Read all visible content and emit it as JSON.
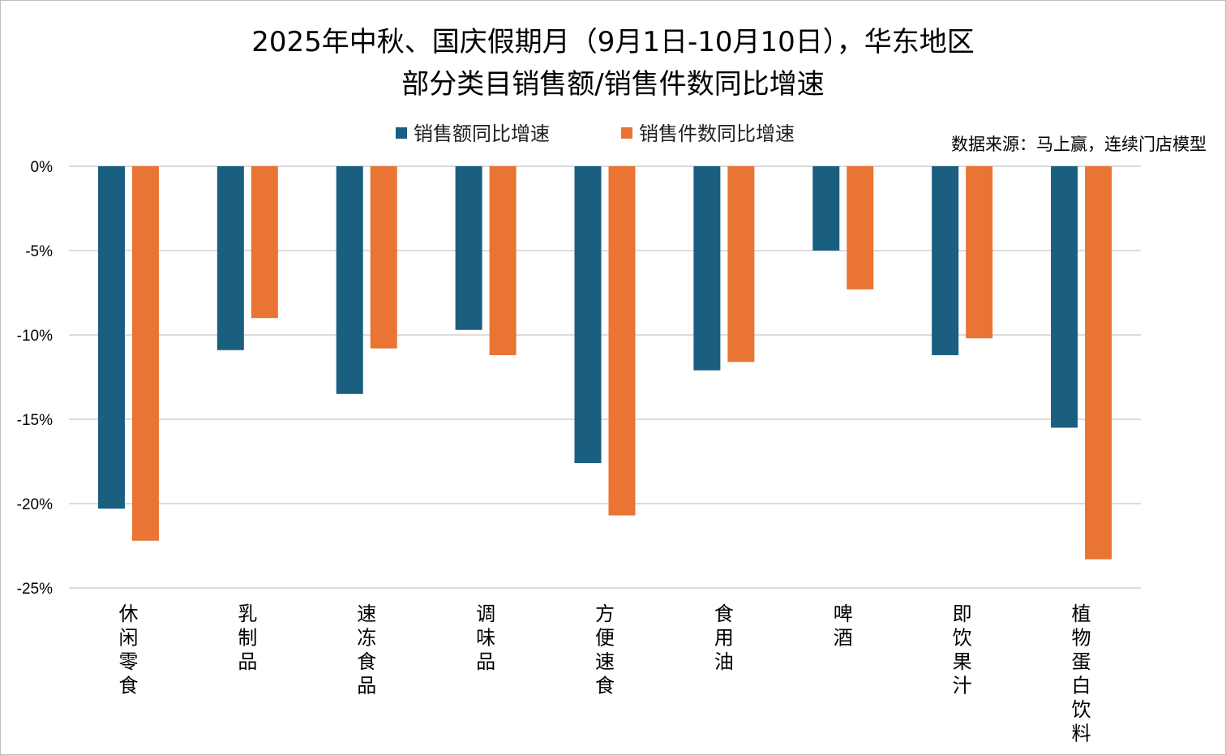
{
  "chart_data": {
    "type": "bar",
    "title_line1": "2025年中秋、国庆假期月（9月1日-10月10日），华东地区",
    "title_line2": "部分类目销售额/销售件数同比增速",
    "source": "数据来源：马上赢，连续门店模型",
    "categories": [
      "休闲零食",
      "乳制品",
      "速冻食品",
      "调味品",
      "方便速食",
      "食用油",
      "啤酒",
      "即饮果汁",
      "植物蛋白饮料"
    ],
    "series": [
      {
        "name": "销售额同比增速",
        "color": "#1a5e80",
        "values": [
          -20.3,
          -10.9,
          -13.5,
          -9.7,
          -17.6,
          -12.1,
          -5.0,
          -11.2,
          -15.5
        ]
      },
      {
        "name": "销售件数同比增速",
        "color": "#e97433",
        "values": [
          -22.2,
          -9.0,
          -10.8,
          -11.2,
          -20.7,
          -11.6,
          -7.3,
          -10.2,
          -23.3
        ]
      }
    ],
    "ylim": [
      -25,
      0
    ],
    "yticks": [
      0,
      -5,
      -10,
      -15,
      -20,
      -25
    ],
    "ytick_labels": [
      "0%",
      "-5%",
      "-10%",
      "-15%",
      "-20%",
      "-25%"
    ],
    "grid": true,
    "legend_position": "top-center"
  }
}
